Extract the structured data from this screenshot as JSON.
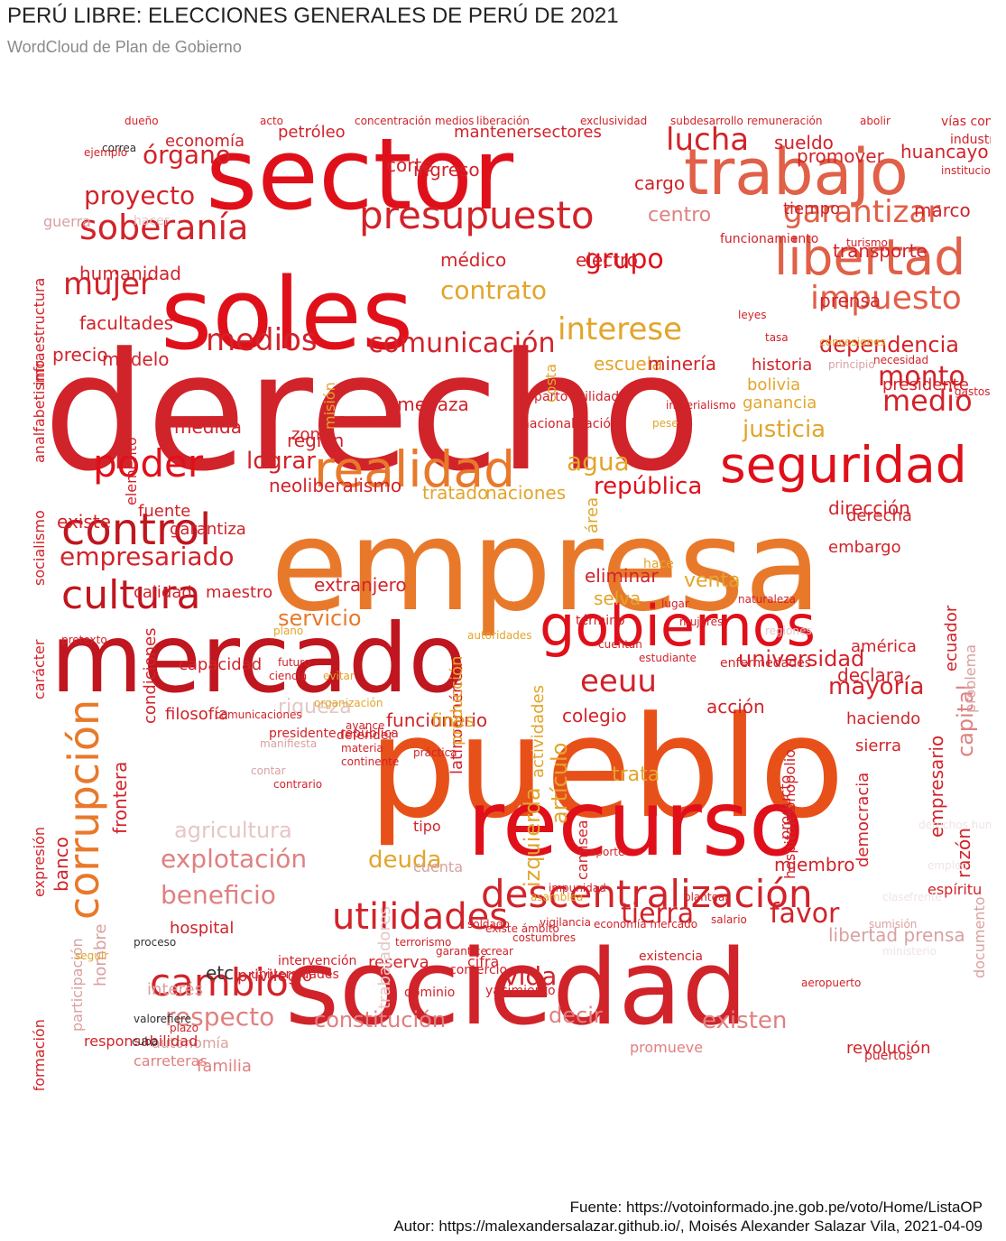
{
  "title": "PERÚ LIBRE: ELECCIONES GENERALES DE PERÚ DE 2021",
  "subtitle": "WordCloud de Plan de Gobierno",
  "caption": {
    "source": "Fuente: https://votoinformado.jne.gob.pe/voto/Home/ListaOP",
    "author": "Autor: https://malexandersalazar.github.io/, Moisés Alexander Salazar Vila, 2021-04-09"
  },
  "palette": {
    "dark_red": "#c0161f",
    "red": "#e0101a",
    "crimson": "#d1232a",
    "orange": "#e8792b",
    "orange_red": "#e8501a",
    "amber": "#e2a52b",
    "light_red": "#e08080",
    "pink": "#d9a0a0",
    "faded": "#e6c6c6",
    "gray": "#b5b5b5",
    "black": "#333333"
  },
  "words": [
    {
      "t": "derecho",
      "c": "#d1232a"
    },
    {
      "t": "empresa",
      "c": "#e8792b"
    },
    {
      "t": "pueblo",
      "c": "#e8501a"
    },
    {
      "t": "sociedad",
      "c": "#d1232a"
    },
    {
      "t": "sector",
      "c": "#e0101a"
    },
    {
      "t": "soles",
      "c": "#e0101a"
    },
    {
      "t": "mercado",
      "c": "#c0161f"
    },
    {
      "t": "recurso",
      "c": "#e0101a"
    },
    {
      "t": "trabajo",
      "c": "#e06048"
    },
    {
      "t": "gobiernos",
      "c": "#e0101a"
    },
    {
      "t": "seguridad",
      "c": "#e0101a"
    },
    {
      "t": "realidad",
      "c": "#e8792b"
    },
    {
      "t": "presupuesto",
      "c": "#d1232a"
    },
    {
      "t": "libertad",
      "c": "#e06048"
    },
    {
      "t": "descentralización",
      "c": "#d1232a"
    },
    {
      "t": "control",
      "c": "#c0161f"
    },
    {
      "t": "cultura",
      "c": "#c0161f"
    },
    {
      "t": "soberanía",
      "c": "#d1232a"
    },
    {
      "t": "utilidades",
      "c": "#d1232a"
    },
    {
      "t": "cambio",
      "c": "#d1232a"
    },
    {
      "t": "corrupción",
      "c": "#e8792b"
    },
    {
      "t": "poder",
      "c": "#e0101a"
    },
    {
      "t": "impuesto",
      "c": "#e06048"
    },
    {
      "t": "garantizar",
      "c": "#e06048"
    },
    {
      "t": "medios",
      "c": "#d1232a"
    },
    {
      "t": "comunicación",
      "c": "#d1232a"
    },
    {
      "t": "interese",
      "c": "#e2a52b"
    },
    {
      "t": "contrato",
      "c": "#e2a52b"
    },
    {
      "t": "grupo",
      "c": "#e0101a"
    },
    {
      "t": "lucha",
      "c": "#d1232a"
    },
    {
      "t": "mujer",
      "c": "#d1232a"
    },
    {
      "t": "proyecto",
      "c": "#d1232a"
    },
    {
      "t": "órgano",
      "c": "#d1232a"
    },
    {
      "t": "empresariado",
      "c": "#d1232a"
    },
    {
      "t": "eeuu",
      "c": "#d1232a"
    },
    {
      "t": "monto",
      "c": "#d1232a"
    },
    {
      "t": "dependencia",
      "c": "#d1232a"
    },
    {
      "t": "medio",
      "c": "#d1232a"
    },
    {
      "t": "explotación",
      "c": "#e08080"
    },
    {
      "t": "beneficio",
      "c": "#e08080"
    },
    {
      "t": "respecto",
      "c": "#e08080"
    },
    {
      "t": "constitución",
      "c": "#e08080"
    },
    {
      "t": "existen",
      "c": "#e08080"
    },
    {
      "t": "decir",
      "c": "#e08080"
    },
    {
      "t": "vida",
      "c": "#d1232a"
    },
    {
      "t": "tierra",
      "c": "#d1232a"
    },
    {
      "t": "favor",
      "c": "#d1232a"
    },
    {
      "t": "deuda",
      "c": "#e2a52b"
    },
    {
      "t": "agricultura",
      "c": "#e6c6c6"
    },
    {
      "t": "riqueza",
      "c": "#e6c6c6"
    },
    {
      "t": "servicio",
      "c": "#e8792b"
    },
    {
      "t": "agua",
      "c": "#e2a52b"
    },
    {
      "t": "lograr",
      "c": "#d1232a"
    },
    {
      "t": "izquierda",
      "c": "#e2a52b"
    },
    {
      "t": "artículo",
      "c": "#e2a52b"
    },
    {
      "t": "mayoría",
      "c": "#d1232a"
    },
    {
      "t": "universidad",
      "c": "#d1232a"
    },
    {
      "t": "capital",
      "c": "#e08080"
    },
    {
      "t": "justicia",
      "c": "#e2a52b"
    },
    {
      "t": "república",
      "c": "#e0101a"
    },
    {
      "t": "naciones",
      "c": "#e2a52b"
    },
    {
      "t": "tratado",
      "c": "#e2a52b"
    },
    {
      "t": "neoliberalismo",
      "c": "#d1232a"
    },
    {
      "t": "región",
      "c": "#d1232a"
    },
    {
      "t": "amenaza",
      "c": "#d1232a"
    },
    {
      "t": "historia",
      "c": "#d1232a"
    },
    {
      "t": "ganancia",
      "c": "#e2a52b"
    },
    {
      "t": "bolivia",
      "c": "#e2a52b"
    },
    {
      "t": "presidente",
      "c": "#d1232a"
    },
    {
      "t": "economía",
      "c": "#d1232a"
    },
    {
      "t": "petróleo",
      "c": "#d1232a"
    },
    {
      "t": "mantenersectores",
      "c": "#d1232a"
    },
    {
      "t": "sueldo",
      "c": "#d1232a"
    },
    {
      "t": "promover",
      "c": "#d1232a"
    },
    {
      "t": "huancayo",
      "c": "#d1232a"
    },
    {
      "t": "centro",
      "c": "#e08080"
    },
    {
      "t": "marco",
      "c": "#d1232a"
    },
    {
      "t": "ingreso",
      "c": "#d1232a"
    },
    {
      "t": "corte",
      "c": "#d1232a"
    },
    {
      "t": "cargo",
      "c": "#d1232a"
    },
    {
      "t": "tiempo",
      "c": "#d1232a"
    },
    {
      "t": "médico",
      "c": "#d1232a"
    },
    {
      "t": "electro",
      "c": "#d1232a"
    },
    {
      "t": "humanidad",
      "c": "#d1232a"
    },
    {
      "t": "facultades",
      "c": "#d1232a"
    },
    {
      "t": "modelo",
      "c": "#d1232a"
    },
    {
      "t": "precio",
      "c": "#d1232a"
    },
    {
      "t": "existe",
      "c": "#d1232a"
    },
    {
      "t": "fuente",
      "c": "#d1232a"
    },
    {
      "t": "garantiza",
      "c": "#d1232a"
    },
    {
      "t": "medida",
      "c": "#d1232a"
    },
    {
      "t": "zona",
      "c": "#d1232a"
    },
    {
      "t": "escuela",
      "c": "#e2a52b"
    },
    {
      "t": "minería",
      "c": "#d1232a"
    },
    {
      "t": "prensa",
      "c": "#d1232a"
    },
    {
      "t": "transporte",
      "c": "#d1232a"
    },
    {
      "t": "eliminar",
      "c": "#d1232a"
    },
    {
      "t": "selva",
      "c": "#e2a52b"
    },
    {
      "t": "venta",
      "c": "#e2a52b"
    },
    {
      "t": "extranjero",
      "c": "#d1232a"
    },
    {
      "t": "maestro",
      "c": "#d1232a"
    },
    {
      "t": "calidad",
      "c": "#d1232a"
    },
    {
      "t": "filosofía",
      "c": "#d1232a"
    },
    {
      "t": "capacidad",
      "c": "#d1232a"
    },
    {
      "t": "acción",
      "c": "#d1232a"
    },
    {
      "t": "colegio",
      "c": "#d1232a"
    },
    {
      "t": "funcionario",
      "c": "#d1232a"
    },
    {
      "t": "fines",
      "c": "#e2a52b"
    },
    {
      "t": "trata",
      "c": "#e2a52b"
    },
    {
      "t": "declara",
      "c": "#d1232a"
    },
    {
      "t": "haciendo",
      "c": "#d1232a"
    },
    {
      "t": "américa",
      "c": "#d1232a"
    },
    {
      "t": "dirección",
      "c": "#d1232a"
    },
    {
      "t": "sierra",
      "c": "#d1232a"
    },
    {
      "t": "embargo",
      "c": "#d1232a"
    },
    {
      "t": "derecha",
      "c": "#d1232a"
    },
    {
      "t": "ecuador",
      "c": "#d1232a"
    },
    {
      "t": "problema",
      "c": "#d9a0a0"
    },
    {
      "t": "razón",
      "c": "#d1232a"
    },
    {
      "t": "documento",
      "c": "#d9a0a0"
    },
    {
      "t": "empresario",
      "c": "#d1232a"
    },
    {
      "t": "libertad prensa",
      "c": "#d9a0a0"
    },
    {
      "t": "revolución",
      "c": "#d1232a"
    },
    {
      "t": "promueve",
      "c": "#e08080"
    },
    {
      "t": "familia",
      "c": "#e08080"
    },
    {
      "t": "carreteras",
      "c": "#e08080"
    },
    {
      "t": "autonomía",
      "c": "#d9a0a0"
    },
    {
      "t": "responsabilidad",
      "c": "#d1232a"
    },
    {
      "t": "interés",
      "c": "#d9a0a0"
    },
    {
      "t": "privilegio",
      "c": "#d1232a"
    },
    {
      "t": "hospital",
      "c": "#d1232a"
    },
    {
      "t": "etc",
      "c": "#333333"
    },
    {
      "t": "reserva",
      "c": "#d1232a"
    },
    {
      "t": "cuenta",
      "c": "#d9a0a0"
    },
    {
      "t": "miembro",
      "c": "#d1232a"
    },
    {
      "t": "espíritu",
      "c": "#d1232a"
    },
    {
      "t": "tipo",
      "c": "#d1232a"
    },
    {
      "t": "banco",
      "c": "#d1232a"
    },
    {
      "t": "frontera",
      "c": "#d1232a"
    },
    {
      "t": "condiciones",
      "c": "#d1232a"
    },
    {
      "t": "expresión",
      "c": "#d1232a"
    },
    {
      "t": "carácter",
      "c": "#d1232a"
    },
    {
      "t": "información",
      "c": "#d1232a"
    },
    {
      "t": "socialismo",
      "c": "#d1232a"
    },
    {
      "t": "infraestructura",
      "c": "#d1232a"
    },
    {
      "t": "analfabetismo",
      "c": "#d1232a"
    },
    {
      "t": "hombre",
      "c": "#d9a0a0"
    },
    {
      "t": "participación",
      "c": "#d9a0a0"
    },
    {
      "t": "trabajadores",
      "c": "#e6c6c6"
    },
    {
      "t": "latinoamérica",
      "c": "#d1232a"
    },
    {
      "t": "producción",
      "c": "#e2a52b"
    },
    {
      "t": "actividades",
      "c": "#e2a52b"
    },
    {
      "t": "área",
      "c": "#e2a52b"
    },
    {
      "t": "costa",
      "c": "#e2a52b"
    },
    {
      "t": "misión",
      "c": "#e2a52b"
    },
    {
      "t": "elemento",
      "c": "#d1232a"
    },
    {
      "t": "democracia",
      "c": "#d1232a"
    },
    {
      "t": "producto",
      "c": "#d1232a"
    },
    {
      "t": "monopolio",
      "c": "#d1232a"
    },
    {
      "t": "hospitales",
      "c": "#d1232a"
    },
    {
      "t": "camisea",
      "c": "#d1232a"
    },
    {
      "t": "cifra",
      "c": "#d1232a"
    },
    {
      "t": "comercio",
      "c": "#d1232a"
    },
    {
      "t": "intervención",
      "c": "#d1232a"
    },
    {
      "t": "universidades",
      "c": "#d1232a"
    },
    {
      "t": "existencia",
      "c": "#d1232a"
    },
    {
      "t": "yacimiento",
      "c": "#d1232a"
    },
    {
      "t": "dominio",
      "c": "#d1232a"
    },
    {
      "t": "dueño",
      "c": "#d1232a"
    },
    {
      "t": "acto",
      "c": "#d1232a"
    },
    {
      "t": "concentración medios",
      "c": "#d1232a"
    },
    {
      "t": "liberación",
      "c": "#d1232a"
    },
    {
      "t": "exclusividad",
      "c": "#d1232a"
    },
    {
      "t": "subdesarrollo",
      "c": "#d1232a"
    },
    {
      "t": "remuneración",
      "c": "#d1232a"
    },
    {
      "t": "abolir",
      "c": "#d1232a"
    },
    {
      "t": "vías comunicación",
      "c": "#d1232a"
    },
    {
      "t": "industria",
      "c": "#d1232a"
    },
    {
      "t": "guerra",
      "c": "#d9a0a0"
    },
    {
      "t": "hacer",
      "c": "#e6c6c6"
    },
    {
      "t": "correa",
      "c": "#333333"
    },
    {
      "t": "ejemplo",
      "c": "#d1232a"
    },
    {
      "t": "instituciones",
      "c": "#d1232a"
    },
    {
      "t": "funcionamiento",
      "c": "#d1232a"
    },
    {
      "t": "turismo",
      "c": "#d1232a"
    },
    {
      "t": "leyes",
      "c": "#d1232a"
    },
    {
      "t": "tasa",
      "c": "#d1232a"
    },
    {
      "t": "concesiones",
      "c": "#e2a52b"
    },
    {
      "t": "principio",
      "c": "#d9a0a0"
    },
    {
      "t": "necesidad",
      "c": "#d1232a"
    },
    {
      "t": "gastos",
      "c": "#d1232a"
    },
    {
      "t": "reparto utilidades",
      "c": "#d1232a"
    },
    {
      "t": "nacionalización",
      "c": "#d1232a"
    },
    {
      "t": "imperialismo",
      "c": "#d1232a"
    },
    {
      "t": "pese",
      "c": "#e2a52b"
    },
    {
      "t": "hace",
      "c": "#e2a52b"
    },
    {
      "t": "lugar",
      "c": "#d1232a"
    },
    {
      "t": "mujeres",
      "c": "#d1232a"
    },
    {
      "t": "naturaleza",
      "c": "#d1232a"
    },
    {
      "t": "enfermedades",
      "c": "#d1232a"
    },
    {
      "t": "ciencia",
      "c": "#d1232a"
    },
    {
      "t": "futuro",
      "c": "#d1232a"
    },
    {
      "t": "plano",
      "c": "#e2a52b"
    },
    {
      "t": "autoridades",
      "c": "#e2a52b"
    },
    {
      "t": "término",
      "c": "#d1232a"
    },
    {
      "t": "estudiante",
      "c": "#d1232a"
    },
    {
      "t": "cuentan",
      "c": "#d1232a"
    },
    {
      "t": "regiones",
      "c": "#e6c6c6"
    },
    {
      "t": "comunicaciones",
      "c": "#d1232a"
    },
    {
      "t": "pretexto",
      "c": "#d1232a"
    },
    {
      "t": "presidente república",
      "c": "#d1232a"
    },
    {
      "t": "manifiesta",
      "c": "#d9a0a0"
    },
    {
      "t": "contar",
      "c": "#d9a0a0"
    },
    {
      "t": "contrario",
      "c": "#d1232a"
    },
    {
      "t": "organización",
      "c": "#e2a52b"
    },
    {
      "t": "evitar",
      "c": "#e2a52b"
    },
    {
      "t": "materia",
      "c": "#d1232a"
    },
    {
      "t": "continente",
      "c": "#d1232a"
    },
    {
      "t": "defender",
      "c": "#d1232a"
    },
    {
      "t": "avance",
      "c": "#d1232a"
    },
    {
      "t": "proceso",
      "c": "#333333"
    },
    {
      "t": "valor",
      "c": "#333333"
    },
    {
      "t": "cuba",
      "c": "#333333"
    },
    {
      "t": "refiere",
      "c": "#333333"
    },
    {
      "t": "plazo",
      "c": "#d1232a"
    },
    {
      "t": "seguir",
      "c": "#e2a52b"
    },
    {
      "t": "práctica",
      "c": "#d1232a"
    },
    {
      "t": "aporte",
      "c": "#d1232a"
    },
    {
      "t": "impunidad",
      "c": "#d1232a"
    },
    {
      "t": "soldado",
      "c": "#d1232a"
    },
    {
      "t": "crear",
      "c": "#d1232a"
    },
    {
      "t": "garantice",
      "c": "#d1232a"
    },
    {
      "t": "existe ámbito",
      "c": "#d1232a"
    },
    {
      "t": "costumbres",
      "c": "#d1232a"
    },
    {
      "t": "terrorismo",
      "c": "#d1232a"
    },
    {
      "t": "asamblea",
      "c": "#e2a52b"
    },
    {
      "t": "vigilancia",
      "c": "#d1232a"
    },
    {
      "t": "economía mercado",
      "c": "#d1232a"
    },
    {
      "t": "plantear",
      "c": "#d1232a"
    },
    {
      "t": "salario",
      "c": "#d1232a"
    },
    {
      "t": "puertos",
      "c": "#d1232a"
    },
    {
      "t": "aeropuerto",
      "c": "#d1232a"
    },
    {
      "t": "sumisión",
      "c": "#d9a0a0"
    },
    {
      "t": "clase",
      "c": "#f0e4e4"
    },
    {
      "t": "frente",
      "c": "#f0e4e4"
    },
    {
      "t": "empleo",
      "c": "#f0e4e4"
    },
    {
      "t": "derechos humanos",
      "c": "#f0e4e4"
    },
    {
      "t": "ministerio",
      "c": "#f0e4e4"
    }
  ]
}
